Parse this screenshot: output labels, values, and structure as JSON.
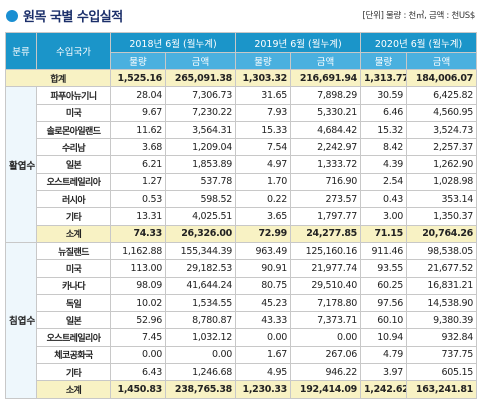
{
  "title": "원목 국별 수입실적",
  "unit_note": "[단위] 물량 : 천㎥, 금액 : 천US$",
  "headers": {
    "category": "분류",
    "country": "수입국가",
    "periods": [
      "2018년 6월 (월누계)",
      "2019년 6월 (월누계)",
      "2020년 6월 (월누계)"
    ],
    "volume": "물량",
    "amount": "금액"
  },
  "total": {
    "label": "합계",
    "values": [
      "1,525.16",
      "265,091.38",
      "1,303.32",
      "216,691.94",
      "1,313.77",
      "184,006.07"
    ]
  },
  "groups": [
    {
      "category": "활엽수",
      "rows": [
        {
          "country": "파푸아뉴기니",
          "values": [
            "28.04",
            "7,306.73",
            "31.65",
            "7,898.29",
            "30.59",
            "6,425.82"
          ]
        },
        {
          "country": "미국",
          "values": [
            "9.67",
            "7,230.22",
            "7.93",
            "5,330.21",
            "6.46",
            "4,560.95"
          ]
        },
        {
          "country": "솔로몬아일랜드",
          "values": [
            "11.62",
            "3,564.31",
            "15.33",
            "4,684.42",
            "15.32",
            "3,524.73"
          ]
        },
        {
          "country": "수리남",
          "values": [
            "3.68",
            "1,209.04",
            "7.54",
            "2,242.97",
            "8.42",
            "2,257.37"
          ]
        },
        {
          "country": "일본",
          "values": [
            "6.21",
            "1,853.89",
            "4.97",
            "1,333.72",
            "4.39",
            "1,262.90"
          ]
        },
        {
          "country": "오스트레일리아",
          "values": [
            "1.27",
            "537.78",
            "1.70",
            "716.90",
            "2.54",
            "1,028.98"
          ]
        },
        {
          "country": "러시아",
          "values": [
            "0.53",
            "598.52",
            "0.22",
            "273.57",
            "0.43",
            "353.14"
          ]
        },
        {
          "country": "기타",
          "values": [
            "13.31",
            "4,025.51",
            "3.65",
            "1,797.77",
            "3.00",
            "1,350.37"
          ]
        }
      ],
      "subtotal": {
        "label": "소계",
        "values": [
          "74.33",
          "26,326.00",
          "72.99",
          "24,277.85",
          "71.15",
          "20,764.26"
        ]
      }
    },
    {
      "category": "침엽수",
      "rows": [
        {
          "country": "뉴질랜드",
          "values": [
            "1,162.88",
            "155,344.39",
            "963.49",
            "125,160.16",
            "911.46",
            "98,538.05"
          ]
        },
        {
          "country": "미국",
          "values": [
            "113.00",
            "29,182.53",
            "90.91",
            "21,977.74",
            "93.55",
            "21,677.52"
          ]
        },
        {
          "country": "카나다",
          "values": [
            "98.09",
            "41,644.24",
            "80.75",
            "29,510.40",
            "60.25",
            "16,831.21"
          ]
        },
        {
          "country": "독일",
          "values": [
            "10.02",
            "1,534.55",
            "45.23",
            "7,178.80",
            "97.56",
            "14,538.90"
          ]
        },
        {
          "country": "일본",
          "values": [
            "52.96",
            "8,780.87",
            "43.33",
            "7,373.71",
            "60.10",
            "9,380.39"
          ]
        },
        {
          "country": "오스트레일리아",
          "values": [
            "7.45",
            "1,032.12",
            "0.00",
            "0.00",
            "10.94",
            "932.84"
          ]
        },
        {
          "country": "체코공화국",
          "values": [
            "0.00",
            "0.00",
            "1.67",
            "267.06",
            "4.79",
            "737.75"
          ]
        },
        {
          "country": "기타",
          "values": [
            "6.43",
            "1,246.68",
            "4.95",
            "946.22",
            "3.97",
            "605.15"
          ]
        }
      ],
      "subtotal": {
        "label": "소계",
        "values": [
          "1,450.83",
          "238,765.38",
          "1,230.33",
          "192,414.09",
          "1,242.62",
          "163,241.81"
        ]
      }
    }
  ]
}
